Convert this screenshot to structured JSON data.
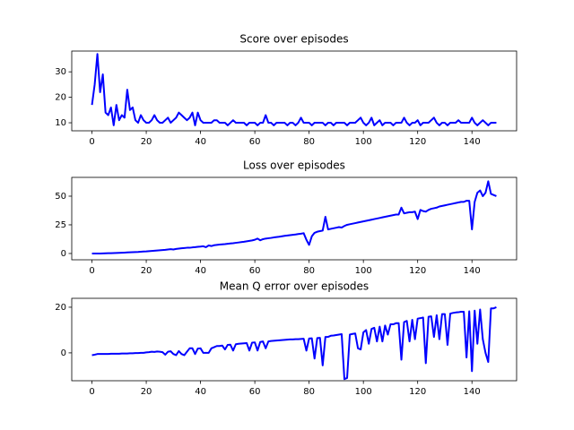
{
  "chart_data": [
    {
      "type": "line",
      "title": "Score over episodes",
      "x": [
        0,
        1,
        2,
        3,
        4,
        5,
        6,
        7,
        8,
        9,
        10,
        11,
        12,
        13,
        14,
        15,
        16,
        17,
        18,
        19,
        20,
        21,
        22,
        23,
        24,
        25,
        26,
        27,
        28,
        29,
        30,
        31,
        32,
        33,
        34,
        35,
        36,
        37,
        38,
        39,
        40,
        41,
        42,
        43,
        44,
        45,
        46,
        47,
        48,
        49,
        50,
        51,
        52,
        53,
        54,
        55,
        56,
        57,
        58,
        59,
        60,
        61,
        62,
        63,
        64,
        65,
        66,
        67,
        68,
        69,
        70,
        71,
        72,
        73,
        74,
        75,
        76,
        77,
        78,
        79,
        80,
        81,
        82,
        83,
        84,
        85,
        86,
        87,
        88,
        89,
        90,
        91,
        92,
        93,
        94,
        95,
        96,
        97,
        98,
        99,
        100,
        101,
        102,
        103,
        104,
        105,
        106,
        107,
        108,
        109,
        110,
        111,
        112,
        113,
        114,
        115,
        116,
        117,
        118,
        119,
        120,
        121,
        122,
        123,
        124,
        125,
        126,
        127,
        128,
        129,
        130,
        131,
        132,
        133,
        134,
        135,
        136,
        137,
        138,
        139,
        140,
        141,
        142,
        143,
        144,
        145,
        146,
        147,
        148,
        149
      ],
      "series": [
        {
          "color": "#0000ff",
          "values": [
            17,
            25,
            37,
            22,
            29,
            14,
            13,
            16,
            9,
            17,
            11,
            13,
            12,
            23,
            15,
            16,
            11,
            10,
            13,
            11,
            10,
            10,
            11,
            13,
            11,
            10,
            10,
            11,
            12,
            10,
            11,
            12,
            14,
            13,
            12,
            11,
            12,
            14,
            9,
            14,
            11,
            10,
            10,
            10,
            10,
            11,
            11,
            10,
            10,
            10,
            9,
            10,
            11,
            10,
            10,
            10,
            10,
            9,
            10,
            10,
            10,
            9,
            10,
            10,
            13,
            10,
            10,
            9,
            10,
            10,
            10,
            10,
            9,
            10,
            10,
            9,
            10,
            12,
            10,
            10,
            10,
            9,
            10,
            10,
            10,
            10,
            9,
            10,
            10,
            9,
            10,
            10,
            10,
            10,
            9,
            10,
            10,
            10,
            11,
            12,
            10,
            9,
            10,
            12,
            9,
            10,
            11,
            9,
            10,
            10,
            10,
            9,
            10,
            10,
            10,
            12,
            10,
            9,
            10,
            10,
            11,
            9,
            10,
            10,
            10,
            11,
            12,
            10,
            9,
            10,
            10,
            9,
            10,
            10,
            10,
            11,
            10,
            10,
            10,
            10,
            12,
            10,
            9,
            10,
            11,
            10,
            9,
            10,
            10,
            10
          ]
        }
      ],
      "xlim": [
        -7.45,
        156.45
      ],
      "xticks": [
        0,
        20,
        40,
        60,
        80,
        100,
        120,
        140
      ],
      "ylim": [
        6.85,
        38.15
      ],
      "yticks": [
        10,
        20,
        30
      ]
    },
    {
      "type": "line",
      "title": "Loss over episodes",
      "x": [
        0,
        1,
        2,
        3,
        4,
        5,
        6,
        7,
        8,
        9,
        10,
        11,
        12,
        13,
        14,
        15,
        16,
        17,
        18,
        19,
        20,
        21,
        22,
        23,
        24,
        25,
        26,
        27,
        28,
        29,
        30,
        31,
        32,
        33,
        34,
        35,
        36,
        37,
        38,
        39,
        40,
        41,
        42,
        43,
        44,
        45,
        46,
        47,
        48,
        49,
        50,
        51,
        52,
        53,
        54,
        55,
        56,
        57,
        58,
        59,
        60,
        61,
        62,
        63,
        64,
        65,
        66,
        67,
        68,
        69,
        70,
        71,
        72,
        73,
        74,
        75,
        76,
        77,
        78,
        79,
        80,
        81,
        82,
        83,
        84,
        85,
        86,
        87,
        88,
        89,
        90,
        91,
        92,
        93,
        94,
        95,
        96,
        97,
        98,
        99,
        100,
        101,
        102,
        103,
        104,
        105,
        106,
        107,
        108,
        109,
        110,
        111,
        112,
        113,
        114,
        115,
        116,
        117,
        118,
        119,
        120,
        121,
        122,
        123,
        124,
        125,
        126,
        127,
        128,
        129,
        130,
        131,
        132,
        133,
        134,
        135,
        136,
        137,
        138,
        139,
        140,
        141,
        142,
        143,
        144,
        145,
        146,
        147,
        148,
        149
      ],
      "series": [
        {
          "color": "#0000ff",
          "values": [
            0,
            0,
            0,
            0,
            0.1,
            0.2,
            0.3,
            0.3,
            0.4,
            0.5,
            0.6,
            0.7,
            0.8,
            0.9,
            1,
            1.1,
            1.2,
            1.3,
            1.5,
            1.7,
            1.8,
            2,
            2.2,
            2.4,
            2.6,
            2.8,
            3,
            3.2,
            3.5,
            3.8,
            3.5,
            4,
            4.3,
            4.6,
            4.8,
            5,
            5,
            5.3,
            5.5,
            5.8,
            6,
            6.3,
            5.5,
            7,
            6.5,
            7.2,
            7.5,
            7.8,
            8,
            8.2,
            8.5,
            8.8,
            9,
            9.3,
            9.6,
            9.9,
            10.2,
            10.6,
            11,
            11.4,
            12,
            13,
            11.5,
            12.5,
            13,
            13.3,
            13.6,
            14,
            14.3,
            14.6,
            15,
            15.4,
            15.7,
            16,
            16.3,
            16.6,
            17,
            17.3,
            17.7,
            12,
            7.5,
            15,
            18,
            19,
            19.5,
            20,
            32,
            21,
            21.5,
            22,
            22.5,
            23,
            22.6,
            24,
            25,
            25.5,
            26,
            26.5,
            27,
            27.5,
            28,
            28.5,
            29,
            29.5,
            30,
            30.5,
            31,
            31.5,
            32,
            32.5,
            33,
            33.5,
            34,
            34,
            40,
            35,
            35.5,
            36,
            36,
            36.5,
            30,
            38,
            37,
            36.5,
            38,
            39,
            39.5,
            40,
            41,
            41.5,
            42,
            42.5,
            43,
            43.5,
            44,
            44.5,
            45,
            45,
            46,
            46,
            21,
            45,
            53,
            55,
            50,
            53,
            63,
            52,
            51,
            50
          ]
        }
      ],
      "xlim": [
        -7.45,
        156.45
      ],
      "xticks": [
        0,
        20,
        40,
        60,
        80,
        100,
        120,
        140
      ],
      "ylim": [
        -5.5,
        66.4
      ],
      "yticks": [
        0,
        25,
        50
      ]
    },
    {
      "type": "line",
      "title": "Mean Q error over episodes",
      "x": [
        0,
        1,
        2,
        3,
        4,
        5,
        6,
        7,
        8,
        9,
        10,
        11,
        12,
        13,
        14,
        15,
        16,
        17,
        18,
        19,
        20,
        21,
        22,
        23,
        24,
        25,
        26,
        27,
        28,
        29,
        30,
        31,
        32,
        33,
        34,
        35,
        36,
        37,
        38,
        39,
        40,
        41,
        42,
        43,
        44,
        45,
        46,
        47,
        48,
        49,
        50,
        51,
        52,
        53,
        54,
        55,
        56,
        57,
        58,
        59,
        60,
        61,
        62,
        63,
        64,
        65,
        66,
        67,
        68,
        69,
        70,
        71,
        72,
        73,
        74,
        75,
        76,
        77,
        78,
        79,
        80,
        81,
        82,
        83,
        84,
        85,
        86,
        87,
        88,
        89,
        90,
        91,
        92,
        93,
        94,
        95,
        96,
        97,
        98,
        99,
        100,
        101,
        102,
        103,
        104,
        105,
        106,
        107,
        108,
        109,
        110,
        111,
        112,
        113,
        114,
        115,
        116,
        117,
        118,
        119,
        120,
        121,
        122,
        123,
        124,
        125,
        126,
        127,
        128,
        129,
        130,
        131,
        132,
        133,
        134,
        135,
        136,
        137,
        138,
        139,
        140,
        141,
        142,
        143,
        144,
        145,
        146,
        147,
        148,
        149
      ],
      "series": [
        {
          "color": "#0000ff",
          "values": [
            -1,
            -0.8,
            -0.5,
            -0.5,
            -0.5,
            -0.5,
            -0.5,
            -0.4,
            -0.4,
            -0.4,
            -0.4,
            -0.3,
            -0.3,
            -0.3,
            -0.2,
            -0.2,
            -0.1,
            -0.1,
            0,
            0,
            0.2,
            0.3,
            0.5,
            0.4,
            0.6,
            0.5,
            0.3,
            -0.8,
            0.5,
            0.7,
            -0.5,
            -1,
            0.8,
            -0.5,
            -1,
            0.5,
            2,
            2,
            -0.5,
            1.9,
            2,
            0,
            0,
            0,
            2,
            2.5,
            3,
            3,
            3.2,
            1.5,
            3.5,
            3.6,
            1,
            3.8,
            4,
            4.1,
            4.2,
            4.3,
            1,
            4.5,
            4.6,
            1,
            4.8,
            5,
            2,
            5,
            5.2,
            5.3,
            5.4,
            5.5,
            5.6,
            5.7,
            5.8,
            5.9,
            5.9,
            6,
            6,
            6.1,
            6.2,
            1,
            6.3,
            6.4,
            -2.5,
            6.5,
            6.6,
            -5.5,
            7,
            7,
            7.5,
            7.6,
            7.8,
            8,
            8.2,
            -11.5,
            -11,
            8,
            8.3,
            8.5,
            2,
            1.5,
            9,
            10,
            4,
            10.5,
            11,
            5,
            11.5,
            5,
            12,
            8,
            12.5,
            12.5,
            13,
            13,
            -3,
            13.5,
            14,
            5,
            14.5,
            6,
            15,
            15.2,
            15.5,
            -4.5,
            15.8,
            16,
            7,
            16.5,
            6,
            17,
            17,
            3.5,
            17.2,
            17.5,
            17.7,
            17.8,
            18,
            18,
            -2,
            18.2,
            -8,
            18.5,
            4,
            19,
            6,
            0,
            -4,
            19.5,
            19.5,
            20
          ]
        }
      ],
      "xlim": [
        -7.45,
        156.45
      ],
      "xticks": [
        0,
        20,
        40,
        60,
        80,
        100,
        120,
        140
      ],
      "ylim": [
        -12.2,
        23.9
      ],
      "yticks": [
        0,
        20
      ]
    }
  ]
}
